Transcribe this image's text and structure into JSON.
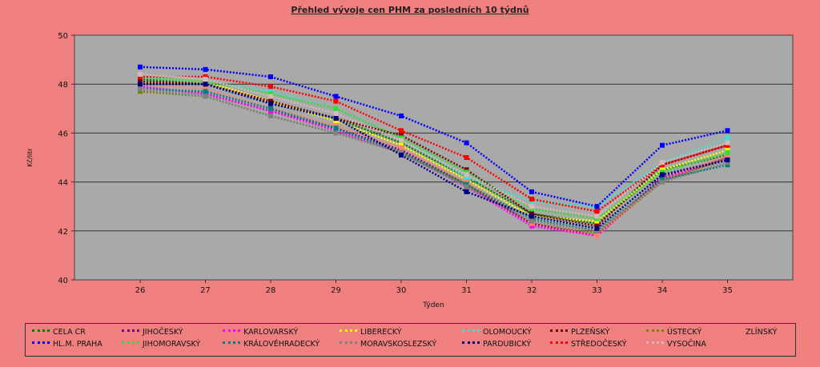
{
  "chart_data": {
    "type": "line",
    "title": "Přehled vývoje cen PHM za posledních 10 týdnů",
    "xlabel": "Týden",
    "ylabel": "Kč/litr",
    "x": [
      26,
      27,
      28,
      29,
      30,
      31,
      32,
      33,
      34,
      35
    ],
    "ylim": [
      40,
      50
    ],
    "yticks": [
      40,
      42,
      44,
      46,
      48,
      50
    ],
    "grid": true,
    "legend_position": "bottom",
    "series": [
      {
        "name": "CELA CR",
        "color": "#008000",
        "values": [
          48.2,
          48.0,
          47.3,
          46.6,
          45.6,
          44.2,
          42.7,
          42.3,
          44.5,
          45.1
        ]
      },
      {
        "name": "JIHOČESKÝ",
        "color": "#800080",
        "values": [
          47.9,
          47.6,
          46.9,
          46.2,
          45.3,
          43.9,
          42.3,
          41.8,
          44.2,
          44.9
        ]
      },
      {
        "name": "KARLOVARSKÝ",
        "color": "#ff00ff",
        "values": [
          47.9,
          47.6,
          46.9,
          46.1,
          45.2,
          43.8,
          42.2,
          41.8,
          44.1,
          45.0
        ]
      },
      {
        "name": "LIBERECKÝ",
        "color": "#ffff00",
        "values": [
          48.3,
          48.1,
          47.3,
          46.5,
          45.5,
          44.1,
          42.6,
          42.4,
          44.5,
          45.3
        ]
      },
      {
        "name": "OLOMOUCKÝ",
        "color": "#40e0d0",
        "values": [
          48.3,
          48.1,
          47.7,
          47.0,
          45.8,
          44.2,
          43.2,
          43.0,
          44.8,
          45.8
        ]
      },
      {
        "name": "PLZEŇSKÝ",
        "color": "#800000",
        "values": [
          48.1,
          48.0,
          47.3,
          46.6,
          45.9,
          44.5,
          42.7,
          42.2,
          44.7,
          45.5
        ]
      },
      {
        "name": "ÚSTECKÝ",
        "color": "#808000",
        "values": [
          47.7,
          47.5,
          46.7,
          46.0,
          45.2,
          43.9,
          42.3,
          41.9,
          44.0,
          45.0
        ]
      },
      {
        "name": "ZLÍNSKÝ",
        "color": "#ff7f6a",
        "values": [
          48.0,
          47.8,
          47.0,
          46.3,
          45.4,
          44.0,
          42.3,
          41.8,
          44.1,
          45.1
        ]
      },
      {
        "name": "HL.M. PRAHA",
        "color": "#0000ff",
        "values": [
          48.7,
          48.6,
          48.3,
          47.5,
          46.7,
          45.6,
          43.6,
          43.0,
          45.5,
          46.1
        ]
      },
      {
        "name": "JIHOMORAVSKÝ",
        "color": "#33dd33",
        "values": [
          48.3,
          48.1,
          47.6,
          47.0,
          45.8,
          44.4,
          42.9,
          42.5,
          44.4,
          45.2
        ]
      },
      {
        "name": "KRÁLOVÉHRADECKÝ",
        "color": "#008080",
        "values": [
          47.8,
          47.7,
          47.0,
          46.2,
          45.2,
          43.9,
          42.5,
          42.0,
          44.1,
          44.7
        ]
      },
      {
        "name": "MORAVSKOSLEZSKÝ",
        "color": "#808080",
        "values": [
          47.8,
          47.5,
          46.7,
          46.0,
          45.2,
          43.8,
          42.4,
          42.0,
          44.0,
          44.8
        ]
      },
      {
        "name": "PARDUBICKÝ",
        "color": "#000080",
        "values": [
          48.0,
          48.0,
          47.2,
          46.6,
          45.1,
          43.6,
          42.6,
          42.1,
          44.3,
          44.9
        ]
      },
      {
        "name": "STŘEDOČESKÝ",
        "color": "#ff0000",
        "values": [
          48.3,
          48.3,
          47.9,
          47.3,
          46.1,
          45.0,
          43.3,
          42.8,
          44.7,
          45.5
        ]
      },
      {
        "name": "VYSOČINA",
        "color": "#d8b8b8",
        "values": [
          48.4,
          48.2,
          47.5,
          46.8,
          45.7,
          44.3,
          43.0,
          42.6,
          44.8,
          45.6
        ]
      }
    ]
  }
}
